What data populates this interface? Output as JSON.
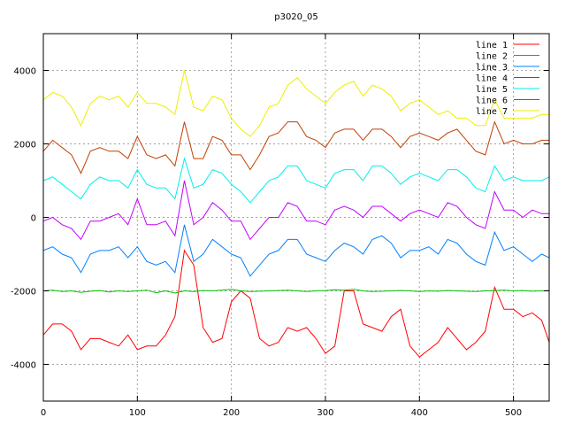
{
  "chart_data": {
    "type": "line",
    "title": "p3020_05",
    "xlabel": "",
    "ylabel": "",
    "xlim": [
      0,
      538
    ],
    "ylim": [
      -5000,
      5000
    ],
    "xticks": [
      0,
      100,
      200,
      300,
      400,
      500
    ],
    "yticks": [
      -4000,
      -2000,
      0,
      2000,
      4000
    ],
    "grid": true,
    "legend_position": "top-right",
    "x_step": 10,
    "series": [
      {
        "name": "line 1",
        "color": "#ff0000",
        "values": [
          -3200,
          -2900,
          -2900,
          -3100,
          -3600,
          -3300,
          -3300,
          -3400,
          -3500,
          -3200,
          -3600,
          -3500,
          -3500,
          -3200,
          -2700,
          -900,
          -1300,
          -3000,
          -3400,
          -3300,
          -2300,
          -2000,
          -2200,
          -3300,
          -3500,
          -3400,
          -3000,
          -3100,
          -3000,
          -3300,
          -3700,
          -3500,
          -2000,
          -2000,
          -2900,
          -3000,
          -3100,
          -2700,
          -2500,
          -3500,
          -3800,
          -3600,
          -3400,
          -3000,
          -3300,
          -3600,
          -3400,
          -3100,
          -1900,
          -2500,
          -2500,
          -2700,
          -2600,
          -2800,
          -3400
        ]
      },
      {
        "name": "line 2",
        "color": "#00c000",
        "values": [
          -2000,
          -1980,
          -2020,
          -2000,
          -2040,
          -2010,
          -1990,
          -2030,
          -2000,
          -2020,
          -2000,
          -1980,
          -2050,
          -2000,
          -2060,
          -2000,
          -2020,
          -1990,
          -2000,
          -1980,
          -1960,
          -2000,
          -2020,
          -2010,
          -2000,
          -1990,
          -1980,
          -2000,
          -2020,
          -2000,
          -1990,
          -1970,
          -1980,
          -1960,
          -2000,
          -2020,
          -2010,
          -2000,
          -1990,
          -2000,
          -2020,
          -2000,
          -2010,
          -1990,
          -2000,
          -2010,
          -2020,
          -2000,
          -1990,
          -1980,
          -2000,
          -1990,
          -2010,
          -2000,
          -1990
        ]
      },
      {
        "name": "line 3",
        "color": "#0080ff",
        "values": [
          -900,
          -800,
          -1000,
          -1100,
          -1500,
          -1000,
          -900,
          -900,
          -800,
          -1100,
          -800,
          -1200,
          -1300,
          -1200,
          -1500,
          -200,
          -1200,
          -1000,
          -600,
          -800,
          -1000,
          -1100,
          -1600,
          -1300,
          -1000,
          -900,
          -600,
          -600,
          -1000,
          -1100,
          -1200,
          -900,
          -700,
          -800,
          -1000,
          -600,
          -500,
          -700,
          -1100,
          -900,
          -900,
          -800,
          -1000,
          -600,
          -700,
          -1000,
          -1200,
          -1300,
          -400,
          -900,
          -800,
          -1000,
          -1200,
          -1000,
          -1100
        ]
      },
      {
        "name": "line 4",
        "color": "#c000ff",
        "values": [
          -100,
          0,
          -200,
          -300,
          -600,
          -100,
          -100,
          0,
          100,
          -200,
          500,
          -200,
          -200,
          -100,
          -500,
          1000,
          -200,
          0,
          400,
          200,
          -100,
          -100,
          -600,
          -300,
          0,
          0,
          400,
          300,
          -100,
          -100,
          -200,
          200,
          300,
          200,
          0,
          300,
          300,
          100,
          -100,
          100,
          200,
          100,
          0,
          400,
          300,
          0,
          -200,
          -300,
          700,
          200,
          200,
          0,
          200,
          100,
          100
        ]
      },
      {
        "name": "line 5",
        "color": "#00eeee",
        "values": [
          1000,
          1100,
          900,
          700,
          500,
          900,
          1100,
          1000,
          1000,
          800,
          1300,
          900,
          800,
          800,
          500,
          1600,
          800,
          900,
          1300,
          1200,
          900,
          700,
          400,
          700,
          1000,
          1100,
          1400,
          1400,
          1000,
          900,
          800,
          1200,
          1300,
          1300,
          1000,
          1400,
          1400,
          1200,
          900,
          1100,
          1200,
          1100,
          1000,
          1300,
          1300,
          1100,
          800,
          700,
          1400,
          1000,
          1100,
          1000,
          1000,
          1000,
          1100
        ]
      },
      {
        "name": "line 6",
        "color": "#c04000",
        "values": [
          1800,
          2100,
          1900,
          1700,
          1200,
          1800,
          1900,
          1800,
          1800,
          1600,
          2200,
          1700,
          1600,
          1700,
          1400,
          2600,
          1600,
          1600,
          2200,
          2100,
          1700,
          1700,
          1300,
          1700,
          2200,
          2300,
          2600,
          2600,
          2200,
          2100,
          1900,
          2300,
          2400,
          2400,
          2100,
          2400,
          2400,
          2200,
          1900,
          2200,
          2300,
          2200,
          2100,
          2300,
          2400,
          2100,
          1800,
          1700,
          2600,
          2000,
          2100,
          2000,
          2000,
          2100,
          2100
        ]
      },
      {
        "name": "line 7",
        "color": "#eeee00",
        "values": [
          3200,
          3400,
          3300,
          3000,
          2500,
          3100,
          3300,
          3200,
          3300,
          3000,
          3400,
          3100,
          3100,
          3000,
          2800,
          4000,
          3000,
          2900,
          3300,
          3200,
          2700,
          2400,
          2200,
          2500,
          3000,
          3100,
          3600,
          3800,
          3500,
          3300,
          3100,
          3400,
          3600,
          3700,
          3300,
          3600,
          3500,
          3300,
          2900,
          3100,
          3200,
          3000,
          2800,
          2900,
          2700,
          2700,
          2500,
          2500,
          3200,
          2700,
          2700,
          2700,
          2700,
          2800,
          2800
        ]
      }
    ]
  }
}
